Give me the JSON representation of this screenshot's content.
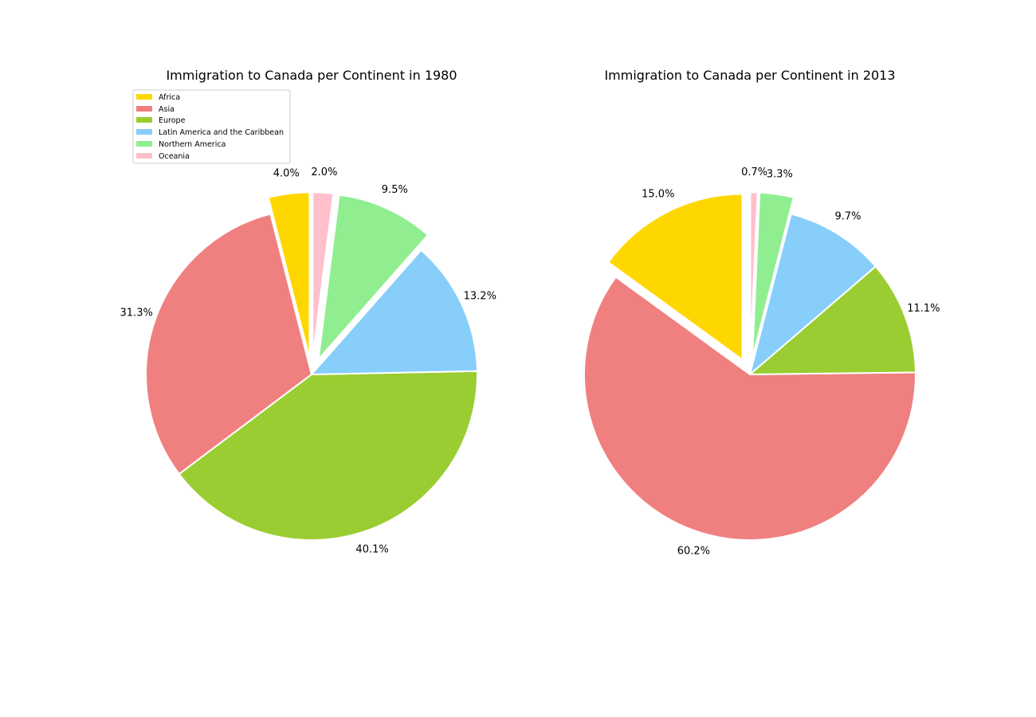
{
  "chart_data": [
    {
      "type": "pie",
      "title": "Immigration to Canada per Continent in 1980",
      "categories": [
        "Africa",
        "Asia",
        "Europe",
        "Latin America and the Caribbean",
        "Northern America",
        "Oceania"
      ],
      "values": [
        4.0,
        31.3,
        40.1,
        13.2,
        9.5,
        2.0
      ],
      "labels": [
        "4.0%",
        "31.3%",
        "40.1%",
        "13.2%",
        "9.5%",
        "2.0%"
      ],
      "exploded": [
        0.1,
        0,
        0,
        0,
        0.1,
        0.1
      ],
      "colors": [
        "#ffd700",
        "#f08080",
        "#9acd32",
        "#87cefa",
        "#90ee90",
        "#ffc0cb"
      ],
      "legend": "upper-left"
    },
    {
      "type": "pie",
      "title": "Immigration to Canada per Continent in 2013",
      "categories": [
        "Africa",
        "Asia",
        "Europe",
        "Latin America and the Caribbean",
        "Northern America",
        "Oceania"
      ],
      "values": [
        15.0,
        60.2,
        11.1,
        9.7,
        3.3,
        0.7
      ],
      "labels": [
        "15.0%",
        "60.2%",
        "11.1%",
        "9.7%",
        "3.3%",
        "0.7%"
      ],
      "exploded": [
        0.1,
        0,
        0,
        0,
        0.1,
        0.1
      ],
      "colors": [
        "#ffd700",
        "#f08080",
        "#9acd32",
        "#87cefa",
        "#90ee90",
        "#ffc0cb"
      ]
    }
  ],
  "legend": {
    "items": [
      "Africa",
      "Asia",
      "Europe",
      "Latin America and the Caribbean",
      "Northern America",
      "Oceania"
    ]
  }
}
